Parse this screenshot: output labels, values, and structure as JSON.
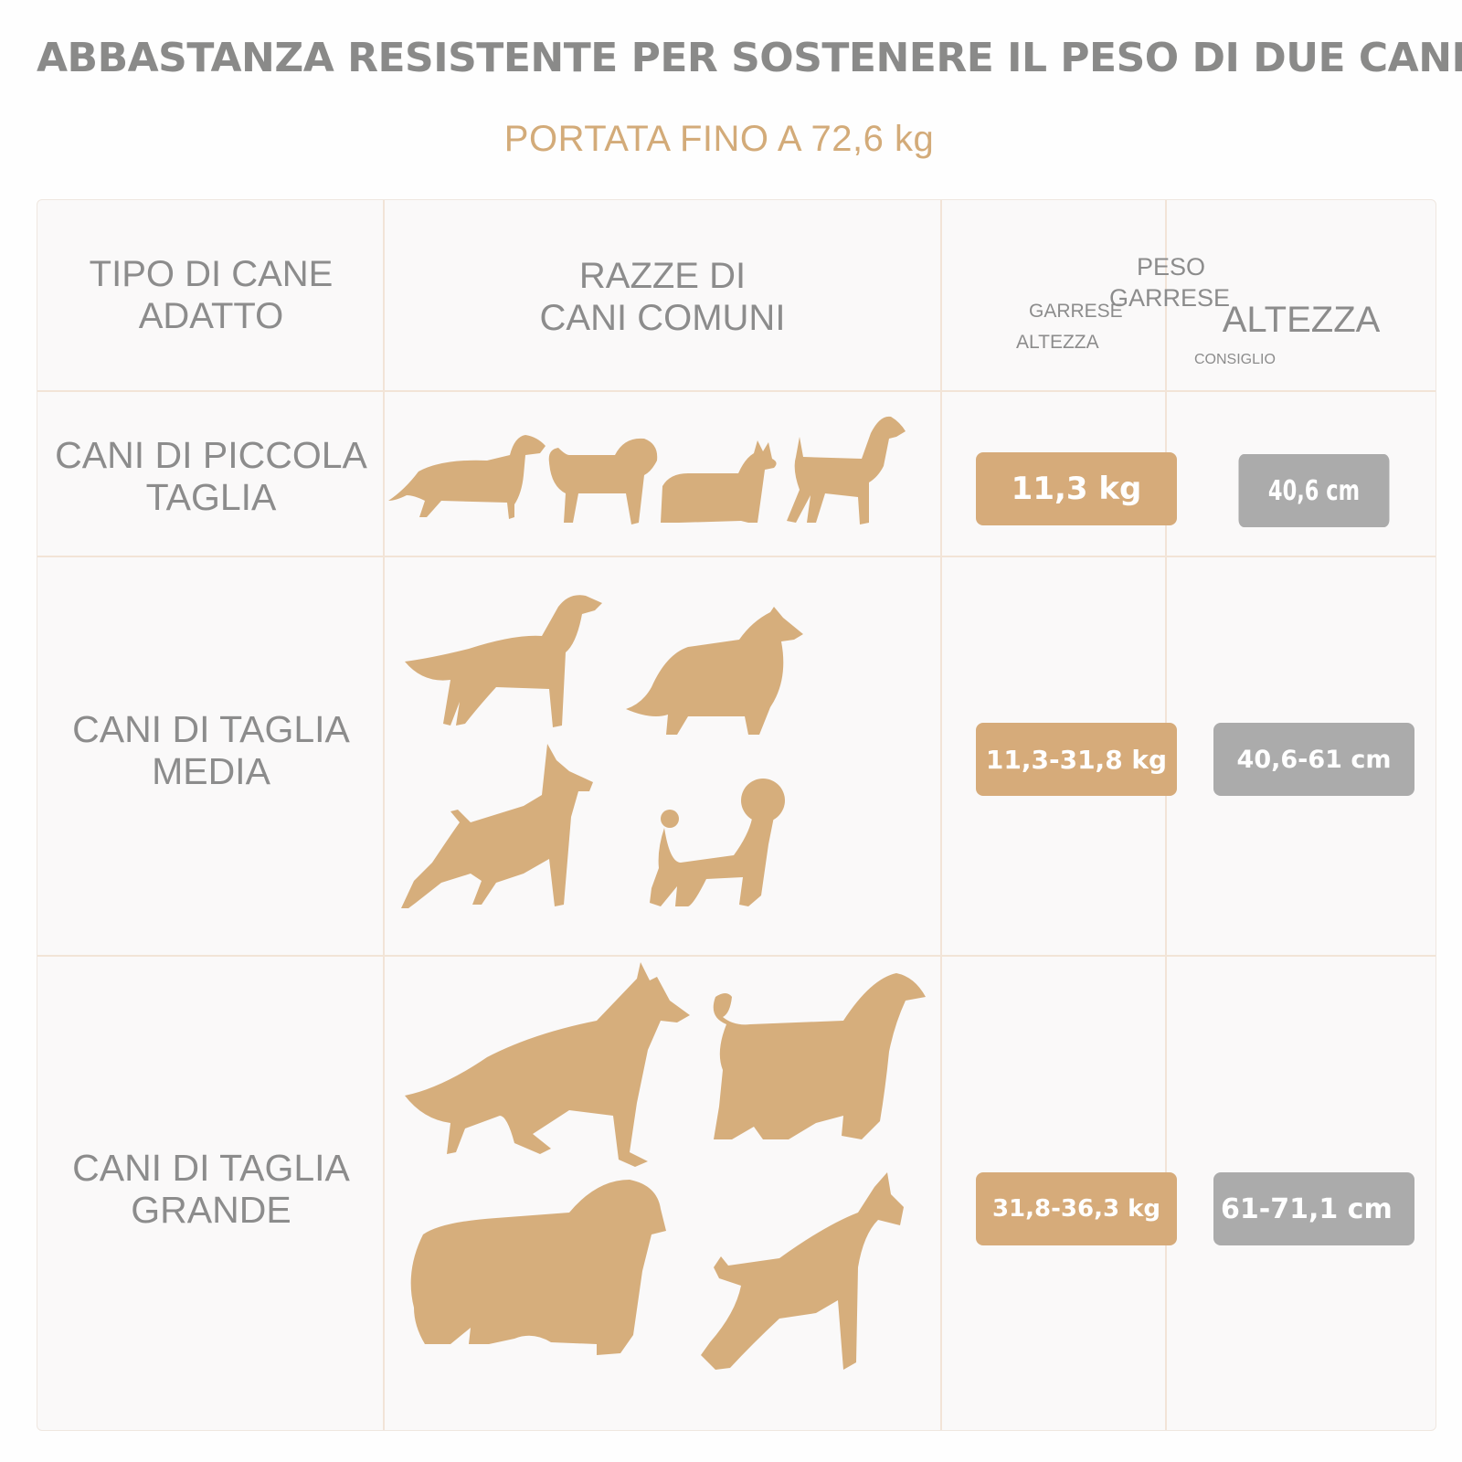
{
  "title": "ABBASTANZA RESISTENTE PER SOSTENERE IL PESO DI DUE CANI",
  "subtitle": "PORTATA FINO A 72,6 kg",
  "header": {
    "col1": [
      "TIPO DI CANE",
      "ADATTO"
    ],
    "col2": [
      "RAZZE DI",
      "CANI COMUNI"
    ],
    "col3_top": [
      "PESO",
      "GARRESE"
    ],
    "col3_small": [
      "GARRESE",
      "ALTEZZA"
    ],
    "col4": "ALTEZZA",
    "col4_small": "CONSIGLIO"
  },
  "rows": [
    {
      "label": [
        "CANI DI PICCOLA",
        "TAGLIA"
      ],
      "weight": "11,3 kg",
      "height": "40,6 cm",
      "icons": [
        "dachshund-icon",
        "pug-icon",
        "yorkshire-terrier-icon",
        "airedale-terrier-icon"
      ]
    },
    {
      "label": [
        "CANI DI TAGLIA",
        "MEDIA"
      ],
      "weight": "11,3-31,8 kg",
      "height": "40,6-61 cm",
      "icons": [
        "setter-icon",
        "collie-icon",
        "dobermann-icon",
        "poodle-icon"
      ]
    },
    {
      "label": [
        "CANI DI TAGLIA",
        "GRANDE"
      ],
      "weight": "31,8-36,3 kg",
      "height": "61-71,1 cm",
      "icons": [
        "german-shepherd-icon",
        "afghan-hound-icon",
        "newfoundland-icon",
        "boxer-icon"
      ]
    }
  ],
  "colors": {
    "accent": "#d6ab7a",
    "gray_badge": "#ababab",
    "text": "#8c8c8c",
    "grid": "#f2e4d7"
  }
}
